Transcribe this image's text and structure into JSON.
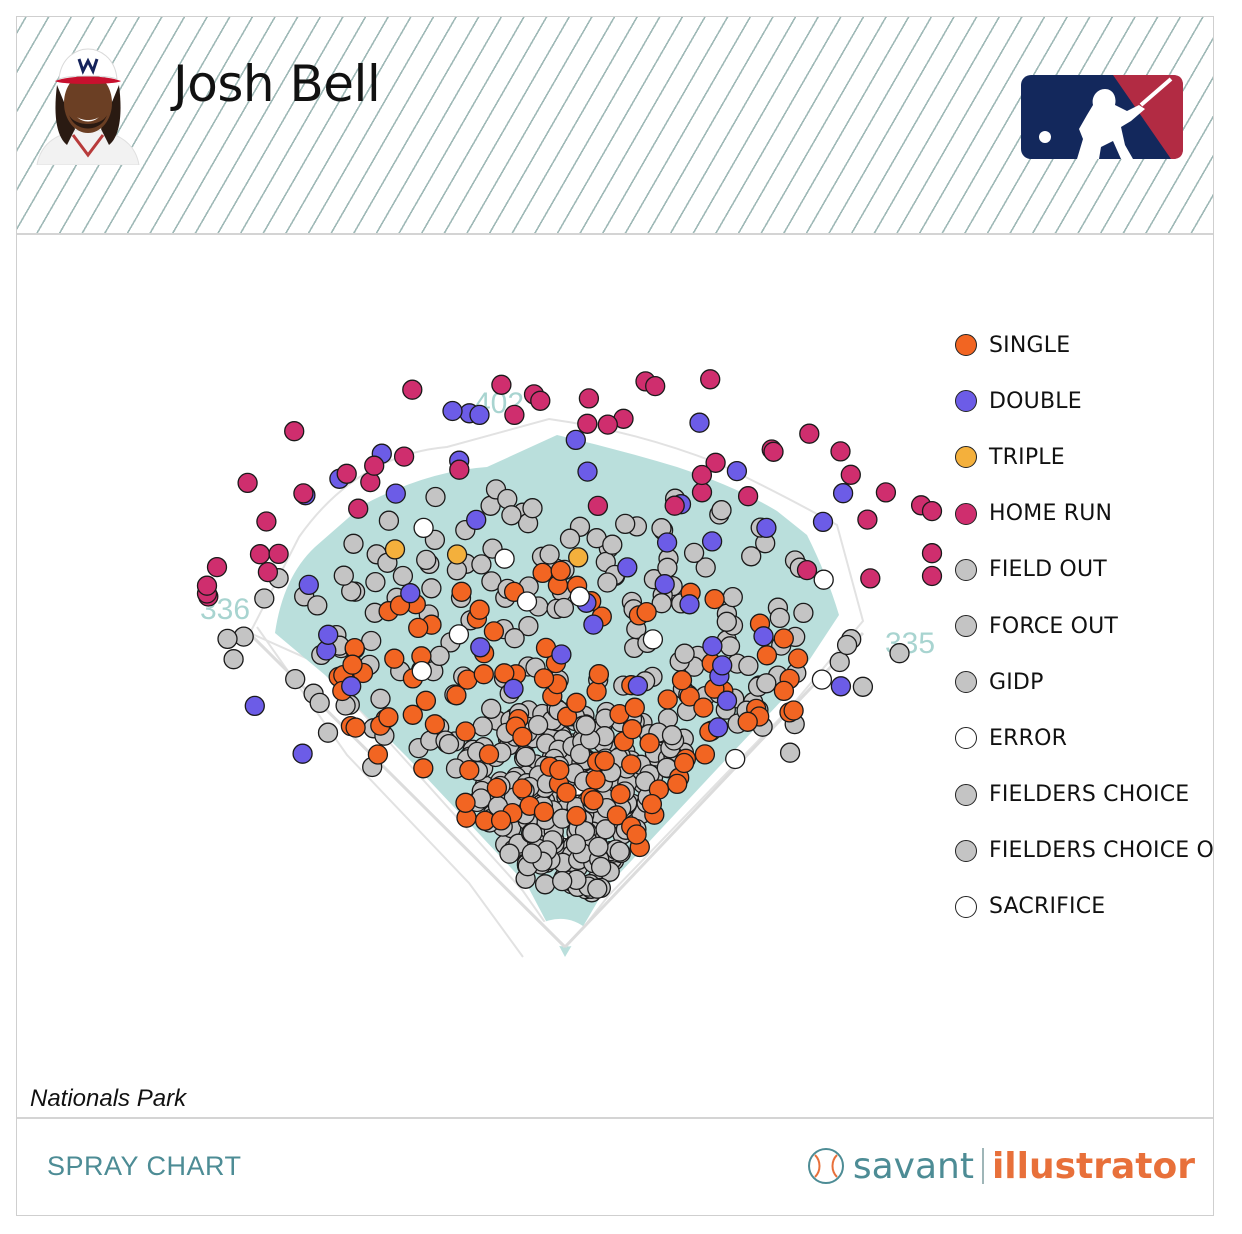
{
  "header": {
    "player_name": "Josh Bell"
  },
  "icons": {
    "headshot": "player-headshot",
    "logo": "mlb-logo",
    "brand_icon": "baseball-icon"
  },
  "colors": {
    "single": "#f26522",
    "double": "#6c5ce7",
    "triple": "#f4b03c",
    "home_run": "#cf2e6e",
    "field_out": "#c4c4c4",
    "error": "#ffffff",
    "sacrifice": "#ffffff",
    "field": "#badfdc"
  },
  "field": {
    "distances": {
      "left": "336",
      "center": "402",
      "right": "335"
    }
  },
  "chart_data": {
    "type": "scatter",
    "title": "Josh Bell",
    "xlabel": "",
    "ylabel": "",
    "legend_position": "right",
    "categories": [
      "SINGLE",
      "DOUBLE",
      "TRIPLE",
      "HOME RUN",
      "FIELD OUT",
      "FORCE OUT",
      "GIDP",
      "ERROR",
      "FIELDERS CHOICE",
      "FIELDERS CHOICE OUT",
      "SACRIFICE"
    ],
    "series": [
      {
        "name": "SINGLE",
        "color": "#f26522",
        "count": 119
      },
      {
        "name": "DOUBLE",
        "color": "#6c5ce7",
        "count": 42
      },
      {
        "name": "TRIPLE",
        "color": "#f4b03c",
        "count": 3
      },
      {
        "name": "HOME RUN",
        "color": "#cf2e6e",
        "count": 48
      },
      {
        "name": "FIELD OUT",
        "color": "#c4c4c4",
        "count": 470
      },
      {
        "name": "FORCE OUT",
        "color": "#c4c4c4",
        "count": 0
      },
      {
        "name": "GIDP",
        "color": "#c4c4c4",
        "count": 0
      },
      {
        "name": "ERROR",
        "color": "#ffffff",
        "count": 10
      },
      {
        "name": "FIELDERS CHOICE",
        "color": "#c4c4c4",
        "count": 0
      },
      {
        "name": "FIELDERS CHOICE OUT",
        "color": "#c4c4c4",
        "count": 0
      },
      {
        "name": "SACRIFICE",
        "color": "#ffffff",
        "count": 0
      }
    ]
  },
  "legend": [
    {
      "label": "SINGLE",
      "color": "#f26522"
    },
    {
      "label": "DOUBLE",
      "color": "#6c5ce7"
    },
    {
      "label": "TRIPLE",
      "color": "#f4b03c"
    },
    {
      "label": "HOME RUN",
      "color": "#cf2e6e"
    },
    {
      "label": "FIELD OUT",
      "color": "#c4c4c4"
    },
    {
      "label": "FORCE OUT",
      "color": "#c4c4c4"
    },
    {
      "label": "GIDP",
      "color": "#c4c4c4"
    },
    {
      "label": "ERROR",
      "color": "#ffffff"
    },
    {
      "label": "FIELDERS CHOICE",
      "color": "#c4c4c4"
    },
    {
      "label": "FIELDERS CHOICE OUT",
      "color": "#c4c4c4"
    },
    {
      "label": "SACRIFICE",
      "color": "#ffffff"
    }
  ],
  "park_name": "Nationals Park",
  "footer": {
    "title": "SPRAY CHART",
    "brand_part1": "savant",
    "brand_part2": "illustrator"
  }
}
